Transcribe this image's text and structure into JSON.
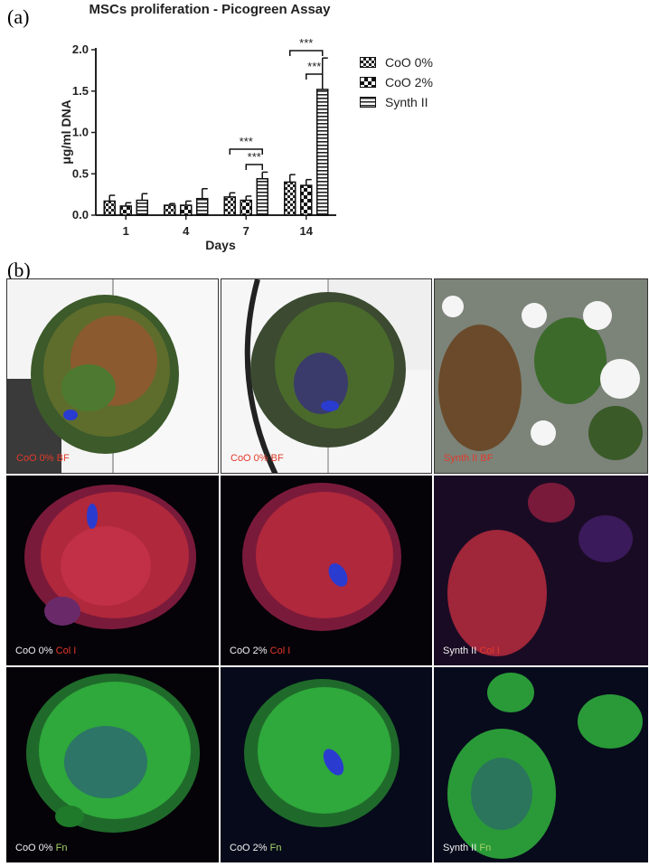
{
  "panels": {
    "a": "(a)",
    "b": "(b)"
  },
  "chart_data": {
    "type": "bar",
    "title": "MSCs proliferation - Picogreen Assay",
    "xlabel": "Days",
    "ylabel": "μg/ml DNA",
    "categories": [
      "1",
      "4",
      "7",
      "14"
    ],
    "ylim": [
      0,
      2.0
    ],
    "yticks": [
      "0.0",
      "0.5",
      "1.0",
      "1.5",
      "2.0"
    ],
    "grid": false,
    "legend_position": "right",
    "series": [
      {
        "name": "CoO 0%",
        "values": [
          0.17,
          0.12,
          0.22,
          0.4
        ],
        "errors": [
          0.07,
          0.02,
          0.05,
          0.09
        ],
        "pattern": "checker-small"
      },
      {
        "name": "CoO 2%",
        "values": [
          0.11,
          0.12,
          0.18,
          0.36
        ],
        "errors": [
          0.04,
          0.05,
          0.05,
          0.07
        ],
        "pattern": "checker-large"
      },
      {
        "name": "Synth II",
        "values": [
          0.18,
          0.2,
          0.44,
          1.52
        ],
        "errors": [
          0.08,
          0.12,
          0.08,
          0.38
        ],
        "pattern": "horizontal-stripes"
      }
    ],
    "significance": [
      {
        "label": "***",
        "category": "7",
        "pair": [
          "CoO 2%",
          "Synth II"
        ]
      },
      {
        "label": "***",
        "category": "7",
        "pair": [
          "CoO 0%",
          "Synth II"
        ]
      },
      {
        "label": "***",
        "category": "14",
        "pair": [
          "CoO 2%",
          "Synth II"
        ]
      },
      {
        "label": "***",
        "category": "14",
        "pair": [
          "CoO 0%",
          "Synth II"
        ]
      }
    ]
  },
  "micrographs": {
    "row1": [
      {
        "parts": [
          {
            "text": "CoO 0% BF",
            "color": "red"
          }
        ]
      },
      {
        "parts": [
          {
            "text": "CoO 0% BF",
            "color": "red"
          }
        ]
      },
      {
        "parts": [
          {
            "text": "Synth II BF",
            "color": "red"
          }
        ]
      }
    ],
    "row2": [
      {
        "parts": [
          {
            "text": "CoO 0% ",
            "color": "white"
          },
          {
            "text": "Col I",
            "color": "red"
          }
        ]
      },
      {
        "parts": [
          {
            "text": "CoO 2% ",
            "color": "white"
          },
          {
            "text": "Col I",
            "color": "red"
          }
        ]
      },
      {
        "parts": [
          {
            "text": "Synth II ",
            "color": "white"
          },
          {
            "text": "Col I",
            "color": "red"
          }
        ]
      }
    ],
    "row3": [
      {
        "parts": [
          {
            "text": "CoO 0% ",
            "color": "white"
          },
          {
            "text": "Fn",
            "color": "green"
          }
        ]
      },
      {
        "parts": [
          {
            "text": "CoO 2% ",
            "color": "white"
          },
          {
            "text": "Fn",
            "color": "green"
          }
        ]
      },
      {
        "parts": [
          {
            "text": "Synth II ",
            "color": "white"
          },
          {
            "text": "Fn",
            "color": "green"
          }
        ]
      }
    ],
    "colors": {
      "red": "#e23a2a",
      "green": "#a8d46a",
      "white": "#f2f2f2",
      "collagen": "#c8283c",
      "fibronectin": "#3fc24a",
      "nuclei": "#2a3bd0"
    }
  }
}
